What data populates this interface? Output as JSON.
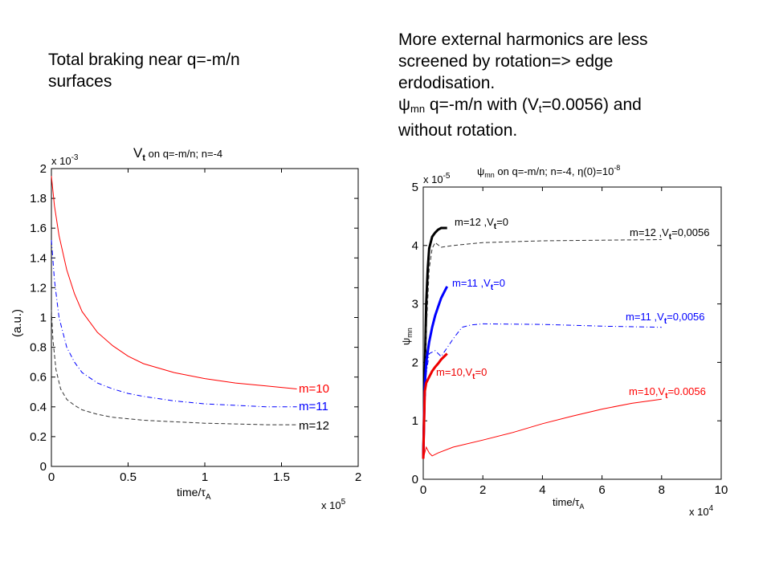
{
  "left_text": {
    "line1": "Total braking near q=-m/n",
    "line2": "surfaces"
  },
  "right_text": {
    "line1": "More external harmonics are less",
    "line2": "screened by rotation=> edge",
    "line3": "erdodisation.",
    "line4_psi": "ψ",
    "line4_sub": "mn",
    "line4_a": " q=-m/n with (V",
    "line4_sub2": "t",
    "line4_b": "=0.0056) and",
    "line5": "without rotation."
  },
  "chart_data": [
    {
      "type": "line",
      "title_main": "V",
      "title_sub": "t",
      "title_rest": " on q=-m/n; n=-4",
      "y_scale_base": "x 10",
      "y_scale_exp": "-3",
      "x_scale_base": "x 10",
      "x_scale_exp": "5",
      "ylabel": "(a.u.)",
      "xlabel_main": "time/τ",
      "xlabel_sub": "A",
      "xlim": [
        0,
        2
      ],
      "ylim": [
        0,
        2
      ],
      "xticks": [
        "0",
        "0.5",
        "1",
        "1.5",
        "2"
      ],
      "yticks": [
        "0",
        "0.2",
        "0.4",
        "0.6",
        "0.8",
        "1",
        "1.2",
        "1.4",
        "1.6",
        "1.8",
        "2"
      ],
      "series": [
        {
          "name": "m=10",
          "color": "#ff0000",
          "dash": "solid",
          "points": [
            [
              0.0,
              1.95
            ],
            [
              0.02,
              1.75
            ],
            [
              0.05,
              1.55
            ],
            [
              0.1,
              1.32
            ],
            [
              0.15,
              1.16
            ],
            [
              0.2,
              1.04
            ],
            [
              0.3,
              0.9
            ],
            [
              0.4,
              0.81
            ],
            [
              0.5,
              0.74
            ],
            [
              0.6,
              0.69
            ],
            [
              0.8,
              0.63
            ],
            [
              1.0,
              0.59
            ],
            [
              1.2,
              0.56
            ],
            [
              1.4,
              0.54
            ],
            [
              1.6,
              0.52
            ]
          ]
        },
        {
          "name": "m=11",
          "color": "#0000ff",
          "dash": "dashdot",
          "points": [
            [
              0.0,
              1.52
            ],
            [
              0.02,
              1.25
            ],
            [
              0.05,
              1.0
            ],
            [
              0.1,
              0.8
            ],
            [
              0.15,
              0.7
            ],
            [
              0.2,
              0.63
            ],
            [
              0.3,
              0.56
            ],
            [
              0.4,
              0.52
            ],
            [
              0.5,
              0.49
            ],
            [
              0.6,
              0.47
            ],
            [
              0.8,
              0.44
            ],
            [
              1.0,
              0.42
            ],
            [
              1.2,
              0.41
            ],
            [
              1.4,
              0.4
            ],
            [
              1.6,
              0.4
            ]
          ]
        },
        {
          "name": "m=12",
          "color": "#333333",
          "dash": "dash",
          "points": [
            [
              0.0,
              1.05
            ],
            [
              0.01,
              0.85
            ],
            [
              0.03,
              0.65
            ],
            [
              0.06,
              0.52
            ],
            [
              0.1,
              0.45
            ],
            [
              0.15,
              0.41
            ],
            [
              0.2,
              0.38
            ],
            [
              0.3,
              0.35
            ],
            [
              0.4,
              0.33
            ],
            [
              0.6,
              0.31
            ],
            [
              0.8,
              0.3
            ],
            [
              1.0,
              0.29
            ],
            [
              1.2,
              0.285
            ],
            [
              1.4,
              0.28
            ],
            [
              1.6,
              0.28
            ]
          ]
        }
      ]
    },
    {
      "type": "line",
      "title_main": "ψ",
      "title_sub": "mn",
      "title_rest": " on q=-m/n; n=-4, η(0)=10",
      "title_exp": "-8",
      "y_scale_base": "x 10",
      "y_scale_exp": "-5",
      "x_scale_base": "x 10",
      "x_scale_exp": "4",
      "ylabel_main": "ψ",
      "ylabel_sub": "mn",
      "xlabel_main": "time/τ",
      "xlabel_sub": "A",
      "xlim": [
        0,
        10
      ],
      "ylim": [
        0,
        5
      ],
      "xticks": [
        "0",
        "2",
        "4",
        "6",
        "8",
        "10"
      ],
      "yticks": [
        "0",
        "1",
        "2",
        "3",
        "4",
        "5"
      ],
      "series": [
        {
          "name": "m=12 ,V",
          "sub": "t",
          "val": "=0",
          "color": "#000000",
          "dash": "solid",
          "width": 3,
          "points": [
            [
              0.0,
              0.35
            ],
            [
              0.05,
              1.8
            ],
            [
              0.1,
              3.0
            ],
            [
              0.15,
              3.6
            ],
            [
              0.2,
              3.95
            ],
            [
              0.3,
              4.15
            ],
            [
              0.4,
              4.22
            ],
            [
              0.5,
              4.27
            ],
            [
              0.6,
              4.3
            ],
            [
              0.8,
              4.3
            ]
          ]
        },
        {
          "name": "m=12 ,V",
          "sub": "t",
          "val": "=0,0056",
          "color": "#333333",
          "dash": "dash",
          "width": 1,
          "points": [
            [
              0.0,
              0.35
            ],
            [
              0.1,
              2.5
            ],
            [
              0.2,
              3.6
            ],
            [
              0.3,
              3.95
            ],
            [
              0.4,
              4.05
            ],
            [
              0.6,
              3.97
            ],
            [
              1.0,
              4.0
            ],
            [
              2.0,
              4.05
            ],
            [
              4.0,
              4.08
            ],
            [
              6.0,
              4.09
            ],
            [
              8.0,
              4.1
            ]
          ]
        },
        {
          "name": "m=11 ,V",
          "sub": "t",
          "val": "=0",
          "color": "#0000ff",
          "dash": "solid",
          "width": 3,
          "points": [
            [
              0.0,
              0.35
            ],
            [
              0.05,
              1.6
            ],
            [
              0.1,
              2.0
            ],
            [
              0.2,
              2.35
            ],
            [
              0.3,
              2.6
            ],
            [
              0.4,
              2.8
            ],
            [
              0.5,
              2.95
            ],
            [
              0.6,
              3.1
            ],
            [
              0.7,
              3.2
            ],
            [
              0.8,
              3.3
            ]
          ]
        },
        {
          "name": "m=11 ,V",
          "sub": "t",
          "val": "=0,0056",
          "color": "#0000ff",
          "dash": "dashdot",
          "width": 1,
          "points": [
            [
              0.0,
              0.35
            ],
            [
              0.1,
              1.8
            ],
            [
              0.2,
              2.15
            ],
            [
              0.4,
              2.2
            ],
            [
              0.6,
              2.1
            ],
            [
              0.8,
              2.25
            ],
            [
              1.0,
              2.4
            ],
            [
              1.3,
              2.6
            ],
            [
              1.6,
              2.64
            ],
            [
              2.0,
              2.66
            ],
            [
              4.0,
              2.65
            ],
            [
              6.0,
              2.62
            ],
            [
              8.0,
              2.6
            ]
          ]
        },
        {
          "name": "m=10,V",
          "sub": "t",
          "val": "=0",
          "color": "#ee0000",
          "dash": "solid",
          "width": 3,
          "points": [
            [
              0.0,
              0.35
            ],
            [
              0.05,
              1.5
            ],
            [
              0.1,
              1.65
            ],
            [
              0.2,
              1.75
            ],
            [
              0.3,
              1.85
            ],
            [
              0.4,
              1.92
            ],
            [
              0.5,
              1.98
            ],
            [
              0.6,
              2.05
            ],
            [
              0.8,
              2.15
            ]
          ]
        },
        {
          "name": "m=10,V",
          "sub": "t",
          "val": "=0.0056",
          "color": "#ff0000",
          "dash": "solid",
          "width": 1,
          "points": [
            [
              0.0,
              0.35
            ],
            [
              0.1,
              0.55
            ],
            [
              0.2,
              0.45
            ],
            [
              0.3,
              0.4
            ],
            [
              0.5,
              0.45
            ],
            [
              1.0,
              0.55
            ],
            [
              2.0,
              0.67
            ],
            [
              3.0,
              0.8
            ],
            [
              4.0,
              0.95
            ],
            [
              5.0,
              1.08
            ],
            [
              6.0,
              1.2
            ],
            [
              7.0,
              1.3
            ],
            [
              8.0,
              1.37
            ]
          ]
        }
      ]
    }
  ]
}
